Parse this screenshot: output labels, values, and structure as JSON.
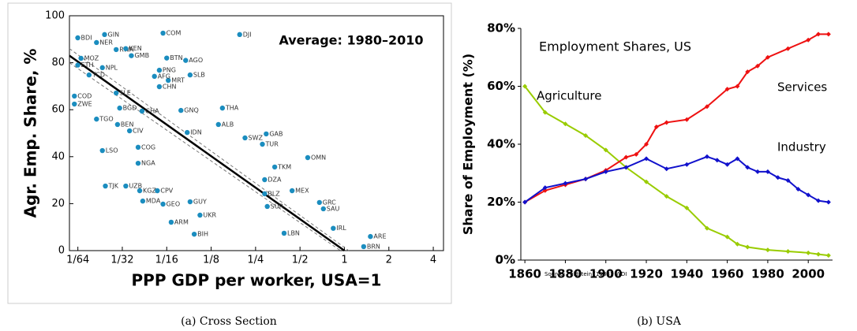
{
  "chart_data": [
    {
      "type": "scatter",
      "xscale": "log",
      "color": "#1b8dbf",
      "annotation": "Average: 1980–2010",
      "x_label": "PPP GDP per worker, USA=1",
      "y_label": "Agr. Emp. Share, %",
      "caption": "(a) Cross Section",
      "xlim": [
        0.0137,
        4.69
      ],
      "ylim": [
        0,
        100
      ],
      "xticks": [
        {
          "value": 0.015625,
          "label": "1/64"
        },
        {
          "value": 0.03125,
          "label": "1/32"
        },
        {
          "value": 0.0625,
          "label": "1/16"
        },
        {
          "value": 0.125,
          "label": "1/8"
        },
        {
          "value": 0.25,
          "label": "1/4"
        },
        {
          "value": 0.5,
          "label": "1/2"
        },
        1,
        2,
        4
      ],
      "yticks": [
        0,
        20,
        40,
        60,
        80,
        100
      ],
      "labels": [
        "BDI",
        "GIN",
        "COM",
        "DJI",
        "NER",
        "RWA",
        "KEN",
        "GMB",
        "BTN",
        "AGO",
        "MOZ",
        "ETH",
        "NPL",
        "PNG",
        "SLB",
        "MRT",
        "CHN",
        "AFG",
        "TCD",
        "COD",
        "ZWE",
        "SLE",
        "BGD",
        "GHA",
        "GNQ",
        "THA",
        "TGO",
        "BEN",
        "CIV",
        "ALB",
        "IDN",
        "GAB",
        "SWZ",
        "TUR",
        "LSO",
        "COG",
        "OMN",
        "NGA",
        "TKM",
        "MEX",
        "TJK",
        "UZB",
        "KGZ",
        "CPV",
        "MDA",
        "GEO",
        "GUY",
        "GRC",
        "SAU",
        "ARM",
        "UKR",
        "BIH",
        "SUR",
        "ARE",
        "DZA",
        "BLZ",
        "LBN",
        "IRL",
        "BRN"
      ],
      "x": [
        0.0156,
        0.0237,
        0.059,
        0.195,
        0.0209,
        0.0284,
        0.033,
        0.036,
        0.0625,
        0.084,
        0.0164,
        0.0156,
        0.0229,
        0.0557,
        0.09,
        0.064,
        0.0557,
        0.0516,
        0.0186,
        0.0148,
        0.0148,
        0.0284,
        0.03,
        0.0425,
        0.078,
        0.149,
        0.0209,
        0.029,
        0.035,
        0.14,
        0.086,
        0.295,
        0.212,
        0.278,
        0.0229,
        0.04,
        0.564,
        0.04,
        0.337,
        0.442,
        0.024,
        0.033,
        0.041,
        0.054,
        0.043,
        0.059,
        0.09,
        0.677,
        0.72,
        0.067,
        0.105,
        0.096,
        0.3,
        1.5,
        0.288,
        0.288,
        0.39,
        0.84,
        1.35
      ],
      "values": [
        90.6,
        92,
        92.6,
        92,
        88.6,
        85.6,
        86,
        83,
        82,
        81,
        81.9,
        79,
        77.9,
        76.8,
        74.8,
        72.5,
        69.8,
        74.2,
        74.8,
        65.8,
        62.4,
        67.1,
        60.7,
        59.4,
        59.7,
        60.7,
        56,
        53.7,
        51,
        53.7,
        50.3,
        49.7,
        48,
        45.3,
        42.6,
        44,
        39.6,
        37.2,
        35.6,
        25.5,
        27.5,
        27.5,
        25.5,
        25.5,
        21.1,
        19.8,
        20.8,
        20.5,
        17.8,
        12.1,
        15.1,
        7,
        18.8,
        6,
        30.2,
        24.2,
        7.4,
        9.5,
        1.7
      ],
      "overlays": [
        {
          "style": "solid",
          "color": "#000000",
          "x": [
            0.0137,
            1.0
          ],
          "values": [
            83,
            0
          ]
        },
        {
          "style": "dashed",
          "color": "#777777",
          "x": [
            0.0137,
            1.07
          ],
          "values": [
            86,
            0
          ]
        },
        {
          "style": "dashed",
          "color": "#777777",
          "x": [
            0.0137,
            0.94
          ],
          "values": [
            80,
            0
          ]
        }
      ]
    },
    {
      "type": "line",
      "title": "Employment Shares, US",
      "y_label": "Share of Employment (%)",
      "source": "Source: Feldstein (1988), WDI",
      "caption": "(b) USA",
      "xlim": [
        1858,
        2012
      ],
      "ylim": [
        0,
        80
      ],
      "xticks": [
        1860,
        1880,
        1900,
        1920,
        1940,
        1960,
        1980,
        2000
      ],
      "yticks": [
        {
          "value": 0,
          "label": "0%"
        },
        {
          "value": 20,
          "label": "20%"
        },
        {
          "value": 40,
          "label": "40%"
        },
        {
          "value": 60,
          "label": "60%"
        },
        {
          "value": 80,
          "label": "80%"
        }
      ],
      "series": [
        {
          "name": "Agriculture",
          "color": "#99cc00",
          "x": [
            1860,
            1870,
            1880,
            1890,
            1900,
            1910,
            1920,
            1930,
            1940,
            1950,
            1960,
            1965,
            1970,
            1980,
            1990,
            2000,
            2005,
            2010
          ],
          "values": [
            60,
            51,
            47,
            43,
            38,
            32,
            27,
            22,
            18,
            11,
            8,
            5.5,
            4.5,
            3.5,
            3,
            2.5,
            2,
            1.6
          ]
        },
        {
          "name": "Services",
          "color": "#ee1111",
          "x": [
            1860,
            1870,
            1880,
            1890,
            1900,
            1910,
            1915,
            1920,
            1925,
            1930,
            1940,
            1950,
            1960,
            1965,
            1970,
            1975,
            1980,
            1990,
            2000,
            2005,
            2010
          ],
          "values": [
            20,
            24,
            26,
            28,
            31,
            35.5,
            36.5,
            40,
            46,
            47.5,
            48.5,
            53,
            59,
            60,
            65,
            67,
            70,
            73,
            76,
            78,
            78
          ]
        },
        {
          "name": "Industry",
          "color": "#1111cc",
          "x": [
            1860,
            1870,
            1880,
            1890,
            1900,
            1910,
            1920,
            1930,
            1940,
            1950,
            1955,
            1960,
            1965,
            1970,
            1975,
            1980,
            1985,
            1990,
            1995,
            2000,
            2005,
            2010
          ],
          "values": [
            20,
            25,
            26.5,
            28,
            30.5,
            32,
            35,
            31.5,
            33,
            35.7,
            34.5,
            33,
            35,
            32,
            30.5,
            30.5,
            28.5,
            27.5,
            24.5,
            22.5,
            20.5,
            20
          ]
        }
      ]
    }
  ]
}
